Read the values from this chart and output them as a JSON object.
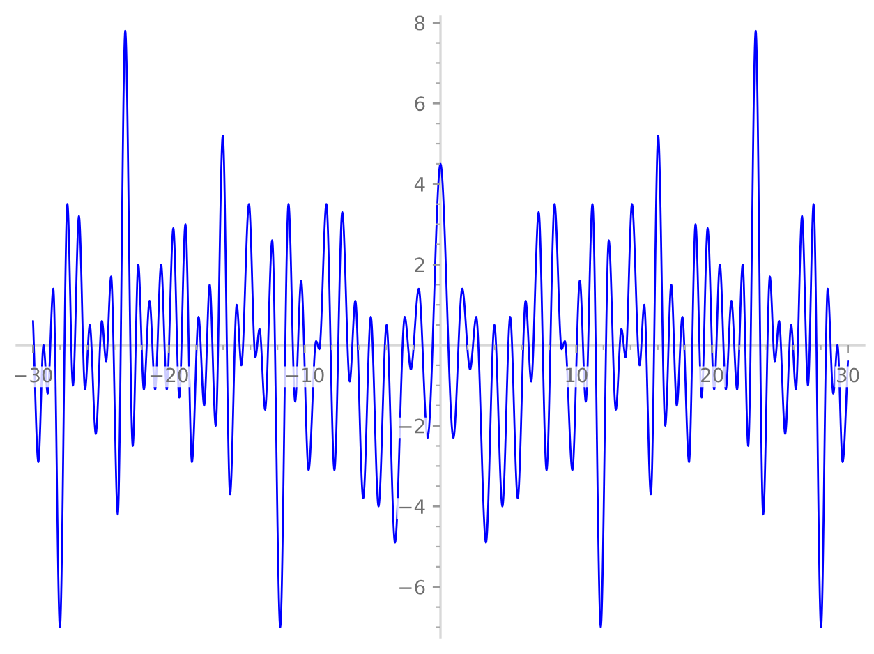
{
  "chart_data": {
    "type": "line",
    "x": [
      -30,
      -29.61,
      -29.23,
      -28.92,
      -28.51,
      -28.02,
      -27.47,
      -27.06,
      -26.62,
      -26.17,
      -25.82,
      -25.38,
      -24.93,
      -24.62,
      -24.25,
      -23.76,
      -23.21,
      -22.66,
      -22.25,
      -21.84,
      -21.42,
      -21.01,
      -20.57,
      -20.15,
      -19.67,
      -19.23,
      -18.78,
      -18.3,
      -17.81,
      -17.4,
      -16.99,
      -16.55,
      -16.03,
      -15.49,
      -15.0,
      -14.66,
      -14.1,
      -13.63,
      -13.32,
      -12.91,
      -12.39,
      -11.8,
      -11.19,
      -10.7,
      -10.26,
      -9.71,
      -9.16,
      -8.92,
      -8.4,
      -7.81,
      -7.23,
      -6.68,
      -6.27,
      -5.69,
      -5.13,
      -4.56,
      -3.97,
      -3.35,
      -2.63,
      -2.18,
      -1.6,
      -0.95,
      0,
      0.95,
      1.6,
      2.18,
      2.63,
      3.35,
      3.97,
      4.56,
      5.13,
      5.69,
      6.27,
      6.68,
      7.23,
      7.81,
      8.4,
      8.92,
      9.16,
      9.71,
      10.26,
      10.7,
      11.19,
      11.8,
      12.39,
      12.91,
      13.32,
      13.63,
      14.1,
      14.66,
      15.0,
      15.49,
      16.03,
      16.55,
      16.99,
      17.4,
      17.81,
      18.3,
      18.78,
      19.23,
      19.67,
      20.15,
      20.57,
      21.01,
      21.42,
      21.84,
      22.25,
      22.66,
      23.21,
      23.76,
      24.25,
      24.62,
      24.93,
      25.38,
      25.82,
      26.17,
      26.62,
      27.06,
      27.47,
      28.02,
      28.51,
      28.92,
      29.23,
      29.61,
      30
    ],
    "series": [
      {
        "color": "#0000ff",
        "values": [
          0.6,
          -2.9,
          0.0,
          -1.2,
          1.4,
          -7.0,
          3.5,
          -1.0,
          3.2,
          -1.1,
          0.5,
          -2.2,
          0.6,
          -0.4,
          1.7,
          -4.2,
          7.8,
          -2.5,
          2.0,
          -1.1,
          1.1,
          -1.1,
          2.0,
          -1.1,
          2.9,
          -1.3,
          3.0,
          -2.9,
          0.7,
          -1.5,
          1.5,
          -2.0,
          5.2,
          -3.7,
          1.0,
          -0.5,
          3.5,
          -0.3,
          0.4,
          -1.6,
          2.6,
          -7.0,
          3.5,
          -1.4,
          1.6,
          -3.1,
          0.1,
          -0.1,
          3.5,
          -3.1,
          3.3,
          -0.9,
          1.1,
          -3.8,
          0.7,
          -4.0,
          0.5,
          -4.9,
          0.7,
          -0.6,
          1.4,
          -2.3,
          4.5,
          -2.3,
          1.4,
          -0.6,
          0.7,
          -4.9,
          0.5,
          -4.0,
          0.7,
          -3.8,
          1.1,
          -0.9,
          3.3,
          -3.1,
          3.5,
          -0.1,
          0.1,
          -3.1,
          1.6,
          -1.4,
          3.5,
          -7.0,
          2.6,
          -1.6,
          0.4,
          -0.3,
          3.5,
          -0.5,
          1.0,
          -3.7,
          5.2,
          -2.0,
          1.5,
          -1.5,
          0.7,
          -2.9,
          3.0,
          -1.3,
          2.9,
          -1.1,
          2.0,
          -1.1,
          1.1,
          -1.1,
          2.0,
          -2.5,
          7.8,
          -4.2,
          1.7,
          -0.4,
          0.6,
          -2.2,
          0.5,
          -1.1,
          3.2,
          -1.0,
          3.5,
          -7.0,
          1.4,
          -1.2,
          0.0,
          -2.9,
          -0.4
        ]
      }
    ],
    "xlim": [
      -31.2,
      31.2
    ],
    "ylim": [
      -7.25,
      8.15
    ],
    "xticks": [
      {
        "value": -30,
        "label": "−30"
      },
      {
        "value": -28,
        "label": null
      },
      {
        "value": -26,
        "label": null
      },
      {
        "value": -24,
        "label": null
      },
      {
        "value": -22,
        "label": null
      },
      {
        "value": -20,
        "label": "−20"
      },
      {
        "value": -18,
        "label": null
      },
      {
        "value": -16,
        "label": null
      },
      {
        "value": -14,
        "label": null
      },
      {
        "value": -12,
        "label": null
      },
      {
        "value": -10,
        "label": "−10"
      },
      {
        "value": -8,
        "label": null
      },
      {
        "value": -6,
        "label": null
      },
      {
        "value": -4,
        "label": null
      },
      {
        "value": -2,
        "label": null
      },
      {
        "value": 2,
        "label": null
      },
      {
        "value": 4,
        "label": null
      },
      {
        "value": 6,
        "label": null
      },
      {
        "value": 8,
        "label": null
      },
      10,
      {
        "value": 12,
        "label": null
      },
      {
        "value": 14,
        "label": null
      },
      {
        "value": 16,
        "label": null
      },
      {
        "value": 18,
        "label": null
      },
      20,
      {
        "value": 22,
        "label": null
      },
      {
        "value": 24,
        "label": null
      },
      {
        "value": 26,
        "label": null
      },
      {
        "value": 28,
        "label": null
      },
      30
    ],
    "yticks": [
      {
        "value": -7,
        "label": null
      },
      {
        "value": -6.5,
        "label": null
      },
      {
        "value": -6,
        "label": "−6"
      },
      {
        "value": -5.5,
        "label": null
      },
      {
        "value": -5,
        "label": null
      },
      {
        "value": -4.5,
        "label": null
      },
      {
        "value": -4,
        "label": "−4"
      },
      {
        "value": -3.5,
        "label": null
      },
      {
        "value": -3,
        "label": null
      },
      {
        "value": -2.5,
        "label": null
      },
      {
        "value": -2,
        "label": "−2"
      },
      {
        "value": -1.5,
        "label": null
      },
      {
        "value": -1,
        "label": null
      },
      {
        "value": -0.5,
        "label": null
      },
      {
        "value": 0.5,
        "label": null
      },
      {
        "value": 1,
        "label": null
      },
      {
        "value": 1.5,
        "label": null
      },
      2,
      {
        "value": 2.5,
        "label": null
      },
      {
        "value": 3,
        "label": null
      },
      {
        "value": 3.5,
        "label": null
      },
      4,
      {
        "value": 4.5,
        "label": null
      },
      {
        "value": 5,
        "label": null
      },
      {
        "value": 5.5,
        "label": null
      },
      6,
      {
        "value": 6.5,
        "label": null
      },
      {
        "value": 7,
        "label": null
      },
      {
        "value": 7.5,
        "label": null
      },
      8
    ]
  }
}
